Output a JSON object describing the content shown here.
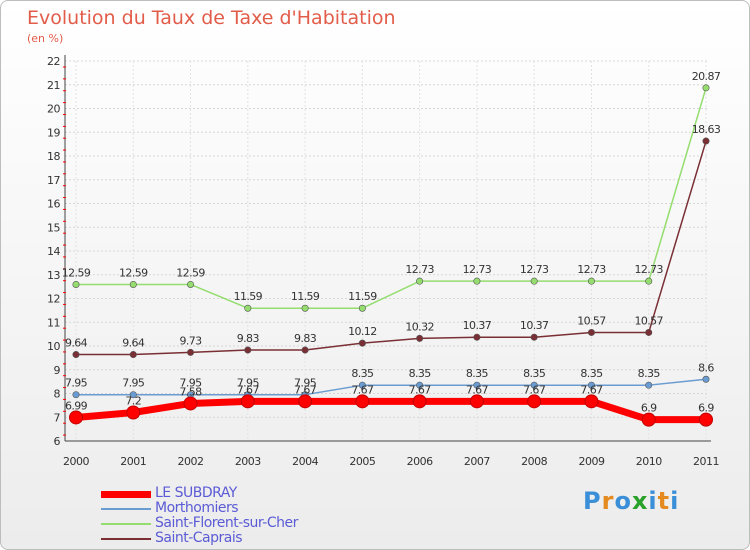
{
  "header": {
    "title": "Evolution du Taux de Taxe d'Habitation",
    "subtitle": "(en %)"
  },
  "logo": {
    "text": "Proxiti"
  },
  "chart_data": {
    "type": "line",
    "title": "Evolution du Taux de Taxe d'Habitation",
    "subtitle": "(en %)",
    "xlabel": "",
    "ylabel": "",
    "ylim": [
      6,
      22
    ],
    "yticks": [
      6,
      7,
      8,
      9,
      10,
      11,
      12,
      13,
      14,
      15,
      16,
      17,
      18,
      19,
      20,
      21,
      22
    ],
    "x": [
      "2000",
      "2001",
      "2002",
      "2003",
      "2004",
      "2005",
      "2006",
      "2007",
      "2008",
      "2009",
      "2010",
      "2011"
    ],
    "grid": true,
    "legend_position": "bottom-left",
    "series": [
      {
        "name": "LE SUBDRAY",
        "color": "#ff0000",
        "values": [
          6.99,
          7.2,
          7.58,
          7.67,
          7.67,
          7.67,
          7.67,
          7.67,
          7.67,
          7.67,
          6.9,
          6.9
        ],
        "labels": [
          "6.99",
          "7.2",
          "7.58",
          "7.67",
          "7.67",
          "7.67",
          "7.67",
          "7.67",
          "7.67",
          "7.67",
          "6.9",
          "6.9"
        ]
      },
      {
        "name": "Morthomiers",
        "color": "#6a9bd1",
        "values": [
          7.95,
          7.95,
          7.95,
          7.95,
          7.95,
          8.35,
          8.35,
          8.35,
          8.35,
          8.35,
          8.35,
          8.6
        ],
        "labels": [
          "7.95",
          "7.95",
          "7.95",
          "7.95",
          "7.95",
          "8.35",
          "8.35",
          "8.35",
          "8.35",
          "8.35",
          "8.35",
          "8.6"
        ]
      },
      {
        "name": "Saint-Florent-sur-Cher",
        "color": "#94dd6e",
        "values": [
          12.59,
          12.59,
          12.59,
          11.59,
          11.59,
          11.59,
          12.73,
          12.73,
          12.73,
          12.73,
          12.73,
          20.87
        ],
        "labels": [
          "12.59",
          "12.59",
          "12.59",
          "11.59",
          "11.59",
          "11.59",
          "12.73",
          "12.73",
          "12.73",
          "12.73",
          "12.73",
          "20.87"
        ]
      },
      {
        "name": "Saint-Caprais",
        "color": "#7a2f35",
        "values": [
          9.64,
          9.64,
          9.73,
          9.83,
          9.83,
          10.12,
          10.32,
          10.37,
          10.37,
          10.57,
          10.57,
          18.63
        ],
        "labels": [
          "9.64",
          "9.64",
          "9.73",
          "9.83",
          "9.83",
          "10.12",
          "10.32",
          "10.37",
          "10.37",
          "10.57",
          "10.57",
          "18.63"
        ]
      }
    ]
  }
}
